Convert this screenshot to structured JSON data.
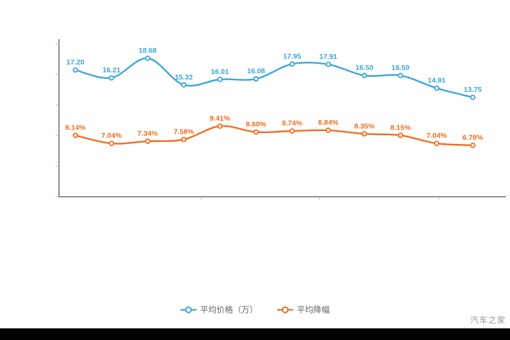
{
  "chart_data": {
    "type": "line",
    "x_labels": [
      "",
      "",
      "",
      "",
      "",
      "",
      "",
      "",
      "",
      "",
      "",
      ""
    ],
    "series": [
      {
        "name": "平均价格（万）",
        "color": "#3aa6d9",
        "values": [
          17.2,
          16.21,
          18.68,
          15.32,
          16.01,
          16.08,
          17.95,
          17.91,
          16.5,
          16.5,
          14.91,
          13.75
        ],
        "labels": [
          "17.20",
          "16.21",
          "18.68",
          "15.32",
          "16.01",
          "16.08",
          "17.95",
          "17.91",
          "16.50",
          "16.50",
          "14.91",
          "13.75"
        ]
      },
      {
        "name": "平均降幅",
        "color": "#f26b1d",
        "values": [
          8.14,
          7.04,
          7.34,
          7.58,
          9.41,
          8.6,
          8.74,
          8.84,
          8.35,
          8.15,
          7.04,
          6.78
        ],
        "labels": [
          "8.14%",
          "7.04%",
          "7.34%",
          "7.58%",
          "9.41%",
          "8.60%",
          "8.74%",
          "8.84%",
          "8.35%",
          "8.15%",
          "7.04%",
          "6.78%"
        ]
      }
    ],
    "grid": false,
    "legend_position": "bottom",
    "axes": {
      "x_visible": true,
      "y_visible": true,
      "tick_labels_visible": false
    }
  },
  "legend": {
    "items": [
      {
        "label": "平均价格（万）",
        "color": "#3aa6d9"
      },
      {
        "label": "平均降幅",
        "color": "#f26b1d"
      }
    ]
  },
  "watermark": "汽车之家"
}
